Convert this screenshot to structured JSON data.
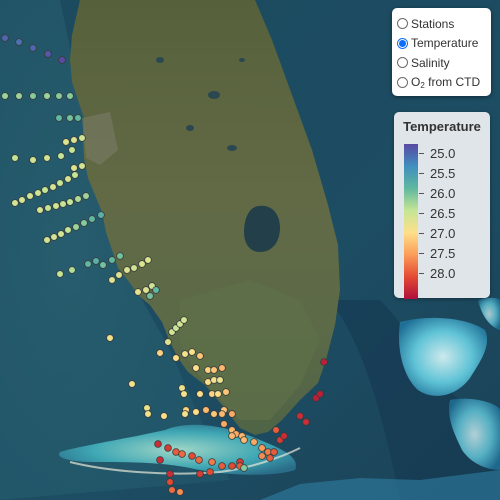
{
  "layer_control": {
    "options": [
      {
        "label": "Stations",
        "selected": false
      },
      {
        "label": "Temperature",
        "selected": true
      },
      {
        "label": "Salinity",
        "selected": false
      },
      {
        "label_main": "O",
        "label_sub": "2",
        "label_rest": " from CTD",
        "selected": false
      }
    ]
  },
  "legend": {
    "title": "Temperature",
    "labels": [
      "25.0",
      "25.5",
      "26.0",
      "26.5",
      "27.0",
      "27.5",
      "28.0"
    ],
    "colors": [
      "#5a4aa3",
      "#3f8fbe",
      "#5fb89f",
      "#c4e595",
      "#fee08b",
      "#fb9d59",
      "#e34a33",
      "#b0103a"
    ]
  },
  "stations": [
    {
      "temp": 25.2
    },
    {
      "temp": 25.3
    },
    {
      "temp": 25.2
    },
    {
      "temp": 25.1
    },
    {
      "temp": 25.0
    },
    {
      "temp": 26.3
    },
    {
      "temp": 26.3
    },
    {
      "temp": 26.2
    },
    {
      "temp": 26.3
    },
    {
      "temp": 26.2
    },
    {
      "temp": 26.2
    },
    {
      "temp": 26.0
    },
    {
      "temp": 26.1
    },
    {
      "temp": 26.0
    },
    {
      "temp": 26.5
    },
    {
      "temp": 26.6
    },
    {
      "temp": 26.6
    },
    {
      "temp": 26.5
    },
    {
      "temp": 26.5
    },
    {
      "temp": 26.7
    },
    {
      "temp": 26.7
    },
    {
      "temp": 26.6
    },
    {
      "temp": 26.6
    },
    {
      "temp": 26.6
    },
    {
      "temp": 26.6
    },
    {
      "temp": 26.6
    },
    {
      "temp": 26.5
    },
    {
      "temp": 26.6
    },
    {
      "temp": 26.5
    },
    {
      "temp": 26.6
    },
    {
      "temp": 26.5
    },
    {
      "temp": 26.6
    },
    {
      "temp": 26.7
    },
    {
      "temp": 26.6
    },
    {
      "temp": 26.5
    },
    {
      "temp": 26.6
    },
    {
      "temp": 26.5
    },
    {
      "temp": 26.5
    },
    {
      "temp": 26.4
    },
    {
      "temp": 26.3
    },
    {
      "temp": 26.6
    },
    {
      "temp": 26.6
    },
    {
      "temp": 26.6
    },
    {
      "temp": 26.5
    },
    {
      "temp": 26.3
    },
    {
      "temp": 26.2
    },
    {
      "temp": 26.0
    },
    {
      "temp": 25.9
    },
    {
      "temp": 26.5
    },
    {
      "temp": 26.4
    },
    {
      "temp": 26.0
    },
    {
      "temp": 25.9
    },
    {
      "temp": 26.1
    },
    {
      "temp": 26.0
    },
    {
      "temp": 26.1
    },
    {
      "temp": 26.7
    },
    {
      "temp": 26.7
    },
    {
      "temp": 26.7
    },
    {
      "temp": 26.6
    },
    {
      "temp": 26.7
    },
    {
      "temp": 26.7
    },
    {
      "temp": 26.8
    },
    {
      "temp": 26.7
    },
    {
      "temp": 26.6
    },
    {
      "temp": 26.9
    },
    {
      "temp": 26.7
    },
    {
      "temp": 26.6
    },
    {
      "temp": 26.5
    },
    {
      "temp": 26.6
    },
    {
      "temp": 26.6
    },
    {
      "temp": 27.1
    },
    {
      "temp": 27.0
    },
    {
      "temp": 26.9
    },
    {
      "temp": 27.0
    },
    {
      "temp": 27.2
    },
    {
      "temp": 27.3
    },
    {
      "temp": 27.1
    },
    {
      "temp": 27.0
    },
    {
      "temp": 27.2
    },
    {
      "temp": 26.9
    },
    {
      "temp": 26.8
    },
    {
      "temp": 27.0
    },
    {
      "temp": 26.9
    },
    {
      "temp": 26.8
    },
    {
      "temp": 26.9
    },
    {
      "temp": 27.0
    },
    {
      "temp": 27.1
    },
    {
      "temp": 27.0
    },
    {
      "temp": 27.2
    },
    {
      "temp": 26.8
    },
    {
      "temp": 27.1
    },
    {
      "temp": 27.3
    },
    {
      "temp": 27.2
    },
    {
      "temp": 26.9
    },
    {
      "temp": 27.0
    },
    {
      "temp": 27.2
    },
    {
      "temp": 27.3
    },
    {
      "temp": 27.4
    },
    {
      "temp": 26.9
    },
    {
      "temp": 27.0
    },
    {
      "temp": 27.4
    },
    {
      "temp": 27.3
    },
    {
      "temp": 27.4
    },
    {
      "temp": 27.3
    },
    {
      "temp": 27.3
    },
    {
      "temp": 27.3
    },
    {
      "temp": 27.4
    },
    {
      "temp": 27.5
    },
    {
      "temp": 27.7
    },
    {
      "temp": 27.9
    },
    {
      "temp": 27.6
    },
    {
      "temp": 27.9
    },
    {
      "temp": 28.1
    },
    {
      "temp": 28.2
    },
    {
      "temp": 27.9
    },
    {
      "temp": 28.2
    },
    {
      "temp": 28.1
    },
    {
      "temp": 27.9
    },
    {
      "temp": 27.8
    },
    {
      "temp": 28.0
    },
    {
      "temp": 27.8
    },
    {
      "temp": 27.7
    },
    {
      "temp": 27.9
    },
    {
      "temp": 28.0
    },
    {
      "temp": 28.1
    },
    {
      "temp": 28.2
    },
    {
      "temp": 28.2
    },
    {
      "temp": 28.0
    },
    {
      "temp": 27.8
    },
    {
      "temp": 27.6
    },
    {
      "temp": 28.2
    },
    {
      "temp": 28.2
    },
    {
      "temp": 28.3
    },
    {
      "temp": 28.3
    },
    {
      "temp": 28.3
    },
    {
      "temp": 26.1
    },
    {
      "temp": 26.0
    },
    {
      "temp": 27.9
    },
    {
      "temp": 28.1
    },
    {
      "temp": 28.0
    },
    {
      "temp": 26.2
    },
    {
      "temp": 26.3
    },
    {
      "temp": 27.2
    },
    {
      "temp": 27.5
    },
    {
      "temp": 27.6
    },
    {
      "temp": 27.4
    }
  ]
}
